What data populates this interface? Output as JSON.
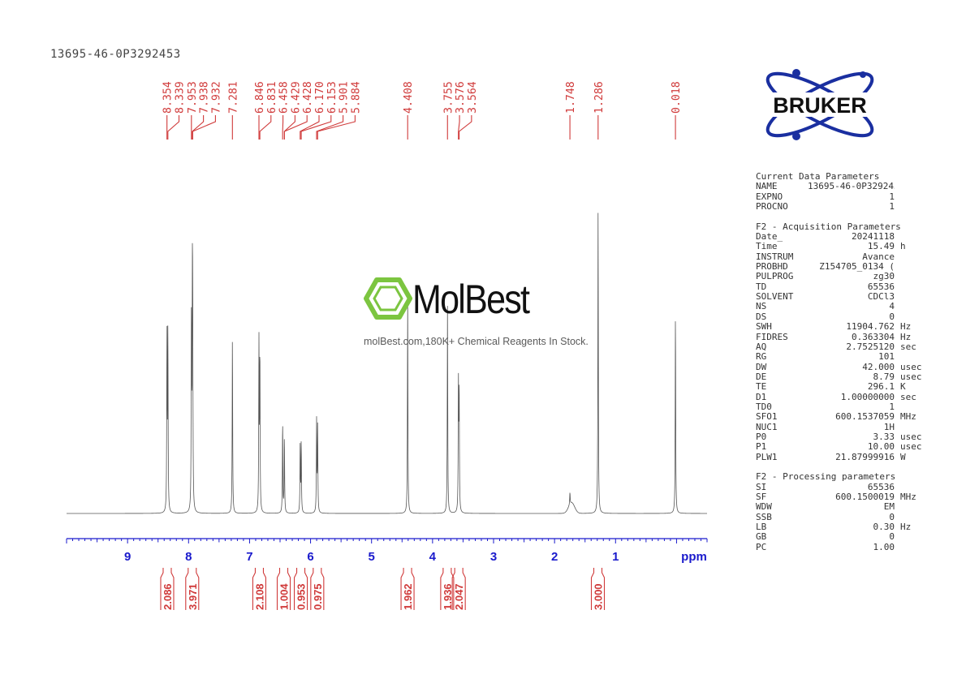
{
  "sample_id": "13695-46-0P3292453",
  "logos": {
    "bruker": "BRUKER",
    "watermark_name": "MolBest",
    "watermark_tagline": "molBest.com,180K+ Chemical Reagents In Stock."
  },
  "colors": {
    "peak_labels": "#d03a3a",
    "axis": "#1a1acc",
    "spectrum": "#555555",
    "bruker_blue": "#1a2fa0",
    "molbest_green": "#7cc540"
  },
  "chart_data": {
    "type": "line",
    "xlabel": "ppm",
    "xlim": [
      10.0,
      -0.5
    ],
    "x_reversed": true,
    "tick_labels": [
      "9",
      "8",
      "7",
      "6",
      "5",
      "4",
      "3",
      "2",
      "1"
    ],
    "peak_labels": [
      "8.354",
      "8.339",
      "7.953",
      "7.938",
      "7.932",
      "7.281",
      "6.846",
      "6.831",
      "6.458",
      "6.429",
      "6.428",
      "6.170",
      "6.153",
      "5.901",
      "5.884",
      "4.408",
      "3.755",
      "3.576",
      "3.564",
      "1.748",
      "1.286",
      "0.018"
    ],
    "peaks": [
      {
        "ppm": 8.354,
        "h": 0.58
      },
      {
        "ppm": 8.339,
        "h": 0.58
      },
      {
        "ppm": 7.953,
        "h": 0.63
      },
      {
        "ppm": 7.938,
        "h": 0.62
      },
      {
        "ppm": 7.932,
        "h": 0.55
      },
      {
        "ppm": 7.281,
        "h": 0.58
      },
      {
        "ppm": 6.846,
        "h": 0.55
      },
      {
        "ppm": 6.831,
        "h": 0.52
      },
      {
        "ppm": 6.458,
        "h": 0.3
      },
      {
        "ppm": 6.429,
        "h": 0.25
      },
      {
        "ppm": 6.17,
        "h": 0.22
      },
      {
        "ppm": 6.153,
        "h": 0.23
      },
      {
        "ppm": 5.901,
        "h": 0.3
      },
      {
        "ppm": 5.884,
        "h": 0.28
      },
      {
        "ppm": 4.408,
        "h": 0.71
      },
      {
        "ppm": 3.755,
        "h": 0.68
      },
      {
        "ppm": 3.576,
        "h": 0.41
      },
      {
        "ppm": 3.564,
        "h": 0.4
      },
      {
        "ppm": 1.748,
        "h": 0.04
      },
      {
        "ppm": 1.286,
        "h": 1.0
      },
      {
        "ppm": 0.018,
        "h": 0.66
      }
    ],
    "integrals": [
      {
        "ppm": 8.35,
        "value": "2.086"
      },
      {
        "ppm": 7.94,
        "value": "3.971"
      },
      {
        "ppm": 6.84,
        "value": "2.108"
      },
      {
        "ppm": 6.44,
        "value": "1.004"
      },
      {
        "ppm": 6.16,
        "value": "0.953"
      },
      {
        "ppm": 5.89,
        "value": "0.975"
      },
      {
        "ppm": 4.41,
        "value": "1.962"
      },
      {
        "ppm": 3.76,
        "value": "1.936"
      },
      {
        "ppm": 3.57,
        "value": "2.047"
      },
      {
        "ppm": 1.29,
        "value": "3.000"
      }
    ]
  },
  "parameters": {
    "sections": [
      {
        "title": "Current Data Parameters",
        "rows": [
          {
            "name": "NAME",
            "value": "13695-46-0P3292453",
            "unit": ""
          },
          {
            "name": "EXPNO",
            "value": "1",
            "unit": ""
          },
          {
            "name": "PROCNO",
            "value": "1",
            "unit": ""
          }
        ]
      },
      {
        "title": "F2 - Acquisition Parameters",
        "rows": [
          {
            "name": "Date_",
            "value": "20241118",
            "unit": ""
          },
          {
            "name": "Time",
            "value": "15.49",
            "unit": "h"
          },
          {
            "name": "INSTRUM",
            "value": "Avance",
            "unit": ""
          },
          {
            "name": "PROBHD",
            "value": "Z154705_0134 (",
            "unit": ""
          },
          {
            "name": "PULPROG",
            "value": "zg30",
            "unit": ""
          },
          {
            "name": "TD",
            "value": "65536",
            "unit": ""
          },
          {
            "name": "SOLVENT",
            "value": "CDCl3",
            "unit": ""
          },
          {
            "name": "NS",
            "value": "4",
            "unit": ""
          },
          {
            "name": "DS",
            "value": "0",
            "unit": ""
          },
          {
            "name": "SWH",
            "value": "11904.762",
            "unit": "Hz"
          },
          {
            "name": "FIDRES",
            "value": "0.363304",
            "unit": "Hz"
          },
          {
            "name": "AQ",
            "value": "2.7525120",
            "unit": "sec"
          },
          {
            "name": "RG",
            "value": "101",
            "unit": ""
          },
          {
            "name": "DW",
            "value": "42.000",
            "unit": "usec"
          },
          {
            "name": "DE",
            "value": "8.79",
            "unit": "usec"
          },
          {
            "name": "TE",
            "value": "296.1",
            "unit": "K"
          },
          {
            "name": "D1",
            "value": "1.00000000",
            "unit": "sec"
          },
          {
            "name": "TD0",
            "value": "1",
            "unit": ""
          },
          {
            "name": "SFO1",
            "value": "600.1537059",
            "unit": "MHz"
          },
          {
            "name": "NUC1",
            "value": "1H",
            "unit": ""
          },
          {
            "name": "P0",
            "value": "3.33",
            "unit": "usec"
          },
          {
            "name": "P1",
            "value": "10.00",
            "unit": "usec"
          },
          {
            "name": "PLW1",
            "value": "21.87999916",
            "unit": "W"
          }
        ]
      },
      {
        "title": "F2 - Processing parameters",
        "rows": [
          {
            "name": "SI",
            "value": "65536",
            "unit": ""
          },
          {
            "name": "SF",
            "value": "600.1500019",
            "unit": "MHz"
          },
          {
            "name": "WDW",
            "value": "EM",
            "unit": ""
          },
          {
            "name": "SSB",
            "value": "0",
            "unit": ""
          },
          {
            "name": "LB",
            "value": "0.30",
            "unit": "Hz"
          },
          {
            "name": "GB",
            "value": "0",
            "unit": ""
          },
          {
            "name": "PC",
            "value": "1.00",
            "unit": ""
          }
        ]
      }
    ]
  }
}
